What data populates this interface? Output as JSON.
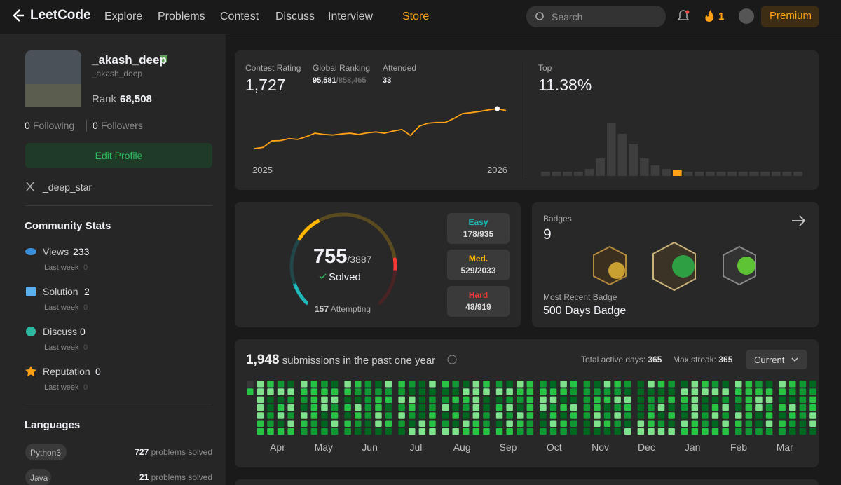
{
  "nav": {
    "logo": "LeetCode",
    "links": [
      "Explore",
      "Problems",
      "Contest",
      "Discuss",
      "Interview",
      "Store"
    ],
    "search": "Search",
    "streak": "1",
    "premium": "Premium"
  },
  "profile": {
    "name": "_akash_deep",
    "username": "_akash_deep",
    "rank_label": "Rank",
    "rank": "68,508",
    "following": "0",
    "following_label": "Following",
    "followers": "0",
    "followers_label": "Followers",
    "edit": "Edit Profile",
    "social": "_deep_star"
  },
  "community": {
    "title": "Community Stats",
    "items": [
      {
        "label": "Views",
        "value": "233",
        "sub": "Last week",
        "delta": "0"
      },
      {
        "label": "Solution",
        "value": "2",
        "sub": "Last week",
        "delta": "0"
      },
      {
        "label": "Discuss",
        "value": "0",
        "sub": "Last week",
        "delta": "0"
      },
      {
        "label": "Reputation",
        "value": "0",
        "sub": "Last week",
        "delta": "0"
      }
    ]
  },
  "languages": {
    "title": "Languages",
    "items": [
      {
        "name": "Python3",
        "count": "727",
        "suffix": "problems solved"
      },
      {
        "name": "Java",
        "count": "21",
        "suffix": "problems solved"
      }
    ]
  },
  "contest": {
    "rating_label": "Contest Rating",
    "rating": "1,727",
    "ranking_label": "Global Ranking",
    "ranking": "95,581",
    "ranking_total": "/858,465",
    "attended_label": "Attended",
    "attended": "33",
    "rating_chart": {
      "type": "line",
      "x_labels": [
        "2025",
        "2026"
      ],
      "color": "#ffa116",
      "values": [
        1480,
        1488,
        1530,
        1532,
        1545,
        1540,
        1558,
        1580,
        1572,
        1568,
        1575,
        1580,
        1572,
        1582,
        1588,
        1580,
        1594,
        1604,
        1565,
        1625,
        1645,
        1650,
        1650,
        1676,
        1708,
        1714,
        1722,
        1732,
        1740,
        1727
      ]
    },
    "top_label": "Top",
    "top": "11.38%",
    "distribution": {
      "type": "bar",
      "color": "#3e3e3e",
      "values": [
        6,
        6,
        6,
        6,
        10,
        25,
        75,
        60,
        45,
        25,
        15,
        10,
        8,
        6,
        6,
        6,
        6,
        6,
        6,
        6,
        6,
        6,
        6,
        6
      ],
      "highlight": {
        "index": 12,
        "color": "#ffa116"
      }
    }
  },
  "solved": {
    "solved": "755",
    "total": "/3887",
    "label": "Solved",
    "attempting": "157",
    "attempting_label": "Attempting",
    "difficulties": [
      {
        "label": "Easy",
        "count": "178/935",
        "color": "#1cbaba"
      },
      {
        "label": "Med.",
        "count": "529/2033",
        "color": "#ffb700"
      },
      {
        "label": "Hard",
        "count": "48/919",
        "color": "#f63737"
      }
    ]
  },
  "badges": {
    "label": "Badges",
    "count": "9",
    "recent_label": "Most Recent Badge",
    "recent": "500 Days Badge"
  },
  "submissions": {
    "count": "1,948",
    "text": "submissions in the past one year",
    "active_label": "Total active days:",
    "active": "365",
    "streak_label": "Max streak:",
    "streak": "365",
    "dropdown": "Current",
    "months": [
      "Apr",
      "May",
      "Jun",
      "Jul",
      "Aug",
      "Sep",
      "Oct",
      "Nov",
      "Dec",
      "Jan",
      "Feb",
      "Mar"
    ]
  }
}
